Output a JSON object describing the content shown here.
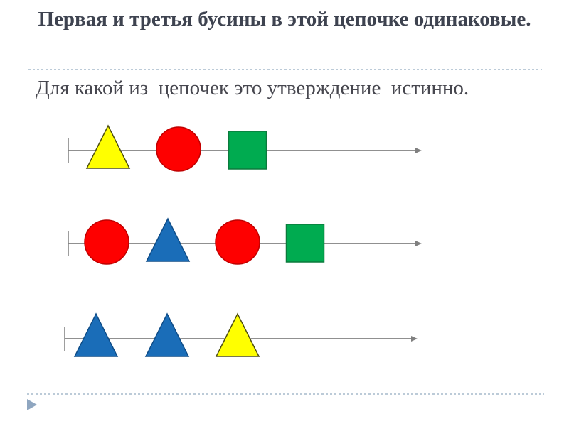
{
  "slide": {
    "title": "Первая и третья бусины в этой цепочке одинаковые.",
    "question": "Для какой из  цепочек это утверждение  истинно.",
    "title_color": "#3e4350",
    "question_color": "#47474f"
  },
  "chains": [
    {
      "name": "chain-1",
      "beads": [
        "yellow-triangle",
        "red-circle",
        "green-square"
      ]
    },
    {
      "name": "chain-2",
      "beads": [
        "red-circle",
        "blue-triangle",
        "red-circle",
        "green-square"
      ]
    },
    {
      "name": "chain-3",
      "beads": [
        "blue-triangle",
        "blue-triangle",
        "yellow-triangle"
      ]
    }
  ],
  "bead_styles": {
    "yellow-triangle": {
      "shape": "triangle",
      "fill": "#ffff00",
      "stroke": "#4d4d10"
    },
    "red-circle": {
      "shape": "circle",
      "fill": "#fe0000",
      "stroke": "#c00000"
    },
    "green-square": {
      "shape": "square",
      "fill": "#00ab50",
      "stroke": "#0b7a3c"
    },
    "blue-triangle": {
      "shape": "triangle",
      "fill": "#1a6db8",
      "stroke": "#0f4c86"
    }
  },
  "chain_line": {
    "color": "#808080",
    "tick_color": "#9e9e9e"
  },
  "separator_color": "#bccbd8",
  "pointer_color": "#8fa6c0"
}
